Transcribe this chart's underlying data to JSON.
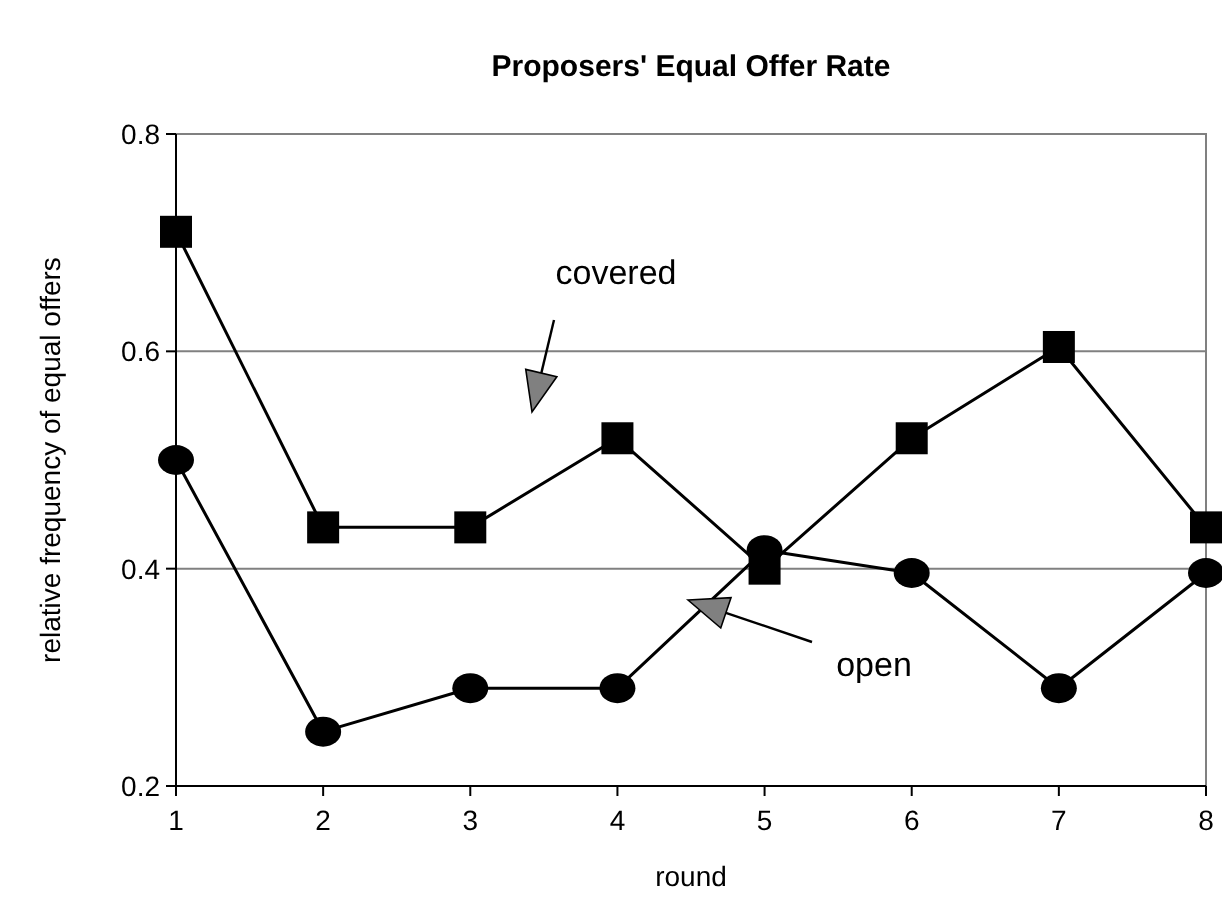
{
  "chart_data": {
    "type": "line",
    "title": "Proposers' Equal Offer Rate",
    "xlabel": "round",
    "ylabel": "relative frequency of equal offers",
    "x": [
      1,
      2,
      3,
      4,
      5,
      6,
      7,
      8
    ],
    "xlim": [
      1,
      8
    ],
    "xticks": [
      1,
      2,
      3,
      4,
      5,
      6,
      7,
      8
    ],
    "ylim": [
      0.2,
      0.8
    ],
    "yticks": [
      0.2,
      0.4,
      0.6,
      0.8
    ],
    "grid": "y",
    "series": [
      {
        "color": "#000000",
        "marker": "square",
        "values": [
          0.71,
          0.438,
          0.438,
          0.52,
          0.4,
          0.52,
          0.604,
          0.438
        ]
      },
      {
        "color": "#000000",
        "marker": "circle",
        "values": [
          0.5,
          0.25,
          0.29,
          0.29,
          0.417,
          0.396,
          0.29,
          0.396
        ]
      }
    ],
    "annotations": [
      "covered",
      "open"
    ]
  }
}
